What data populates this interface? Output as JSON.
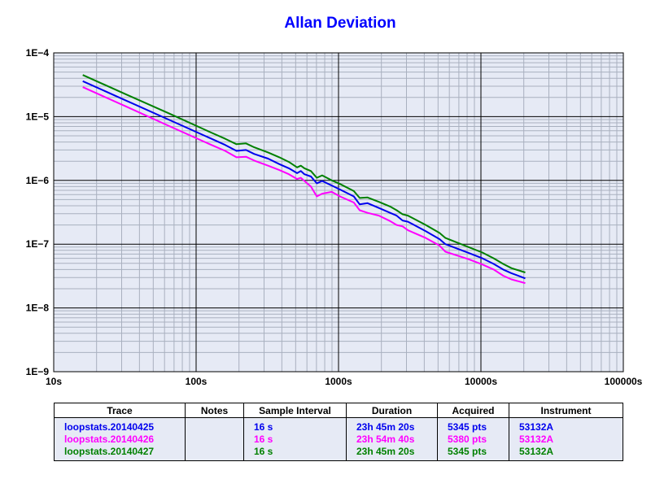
{
  "chart_data": {
    "type": "line",
    "title": "Allan Deviation",
    "x_scale": "log",
    "y_scale": "log",
    "xlim": [
      10,
      100000
    ],
    "ylim": [
      1e-09,
      0.0001
    ],
    "x_tick_labels": [
      "10s",
      "100s",
      "1000s",
      "10000s",
      "100000s"
    ],
    "y_tick_labels": [
      "1E−4",
      "1E−5",
      "1E−6",
      "1E−7",
      "1E−8",
      "1E−9"
    ],
    "grid": true,
    "x": [
      16,
      32,
      64,
      128,
      160,
      192,
      224,
      256,
      320,
      384,
      448,
      512,
      544,
      576,
      640,
      704,
      768,
      896,
      1024,
      1280,
      1408,
      1600,
      1920,
      2304,
      2560,
      2816,
      3072,
      4096,
      5120,
      5632,
      8192,
      10240,
      12288,
      14336,
      16384,
      20480
    ],
    "series": [
      {
        "name": "loopstats.20140425",
        "color": "#0000ee",
        "values": [
          3.6e-05,
          1.8e-05,
          9e-06,
          4.5e-06,
          3.6e-06,
          2.9e-06,
          3e-06,
          2.6e-06,
          2.2e-06,
          1.8e-06,
          1.55e-06,
          1.3e-06,
          1.4e-06,
          1.25e-06,
          1.15e-06,
          9e-07,
          9.8e-07,
          8.3e-07,
          7.2e-07,
          5.6e-07,
          4.2e-07,
          4.4e-07,
          3.7e-07,
          3.1e-07,
          2.8e-07,
          2.35e-07,
          2.25e-07,
          1.6e-07,
          1.2e-07,
          1e-07,
          7.3e-08,
          6e-08,
          4.9e-08,
          4e-08,
          3.5e-08,
          2.9e-08
        ]
      },
      {
        "name": "loopstats.20140426",
        "color": "#ff00ff",
        "values": [
          2.9e-05,
          1.45e-05,
          7.2e-06,
          3.6e-06,
          2.9e-06,
          2.3e-06,
          2.35e-06,
          2.05e-06,
          1.7e-06,
          1.45e-06,
          1.25e-06,
          1.05e-06,
          1.1e-06,
          9.8e-07,
          8e-07,
          5.6e-07,
          6.2e-07,
          6.6e-07,
          5.6e-07,
          4.5e-07,
          3.4e-07,
          3.1e-07,
          2.8e-07,
          2.3e-07,
          2e-07,
          1.9e-07,
          1.65e-07,
          1.25e-07,
          9.5e-08,
          7.6e-08,
          5.8e-08,
          4.8e-08,
          4e-08,
          3.2e-08,
          2.8e-08,
          2.45e-08
        ]
      },
      {
        "name": "loopstats.20140427",
        "color": "#008000",
        "values": [
          4.5e-05,
          2.25e-05,
          1.13e-05,
          5.6e-06,
          4.5e-06,
          3.7e-06,
          3.8e-06,
          3.3e-06,
          2.75e-06,
          2.3e-06,
          1.95e-06,
          1.6e-06,
          1.7e-06,
          1.55e-06,
          1.4e-06,
          1.1e-06,
          1.2e-06,
          1e-06,
          8.8e-07,
          6.8e-07,
          5.3e-07,
          5.4e-07,
          4.6e-07,
          3.9e-07,
          3.4e-07,
          2.95e-07,
          2.8e-07,
          2e-07,
          1.5e-07,
          1.25e-07,
          9e-08,
          7.4e-08,
          6e-08,
          4.9e-08,
          4.2e-08,
          3.6e-08
        ]
      }
    ]
  },
  "table": {
    "headers": [
      "Trace",
      "Notes",
      "Sample Interval",
      "Duration",
      "Acquired",
      "Instrument"
    ],
    "rows": [
      {
        "color": "#0000ee",
        "trace": "loopstats.20140425",
        "notes": "",
        "interval": "16 s",
        "duration": "23h 45m 20s",
        "acquired": "5345 pts",
        "instrument": "53132A"
      },
      {
        "color": "#ff00ff",
        "trace": "loopstats.20140426",
        "notes": "",
        "interval": "16 s",
        "duration": "23h 54m 40s",
        "acquired": "5380 pts",
        "instrument": "53132A"
      },
      {
        "color": "#008000",
        "trace": "loopstats.20140427",
        "notes": "",
        "interval": "16 s",
        "duration": "23h 45m 20s",
        "acquired": "5345 pts",
        "instrument": "53132A"
      }
    ]
  }
}
